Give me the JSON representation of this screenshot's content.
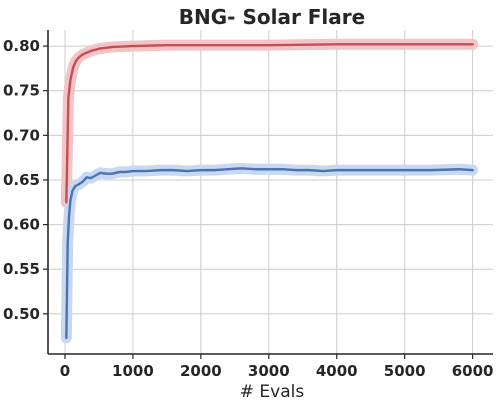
{
  "chart_data": {
    "type": "line",
    "title": "BNG- Solar Flare",
    "xlabel": "# Evals",
    "ylabel": "",
    "xlim": [
      -250,
      6300
    ],
    "ylim": [
      0.455,
      0.818
    ],
    "xticks": [
      0,
      1000,
      2000,
      3000,
      4000,
      5000,
      6000
    ],
    "xtick_labels": [
      "0",
      "1000",
      "2000",
      "3000",
      "4000",
      "5000",
      "6000"
    ],
    "yticks": [
      0.5,
      0.55,
      0.6,
      0.65,
      0.7,
      0.75,
      0.8
    ],
    "ytick_labels": [
      "0.50",
      "0.55",
      "0.60",
      "0.65",
      "0.70",
      "0.75",
      "0.80"
    ],
    "grid": true,
    "series": [
      {
        "color": "#c44e52",
        "band_color": "#f2c4c6",
        "x": [
          20,
          50,
          80,
          120,
          160,
          200,
          250,
          300,
          400,
          500,
          700,
          1000,
          1500,
          2000,
          3000,
          4000,
          5000,
          6000
        ],
        "y": [
          0.625,
          0.742,
          0.762,
          0.776,
          0.783,
          0.787,
          0.79,
          0.792,
          0.795,
          0.797,
          0.799,
          0.8,
          0.801,
          0.801,
          0.801,
          0.802,
          0.802,
          0.802
        ],
        "band_half_width": [
          0.008,
          0.007,
          0.005,
          0.004,
          0.004,
          0.004,
          0.004,
          0.004,
          0.004,
          0.004,
          0.004,
          0.004,
          0.004,
          0.004,
          0.004,
          0.004,
          0.004,
          0.004
        ]
      },
      {
        "color": "#4c72b0",
        "band_color": "#c8d8f0",
        "x": [
          20,
          40,
          60,
          80,
          110,
          150,
          200,
          260,
          320,
          380,
          450,
          520,
          600,
          700,
          800,
          900,
          1000,
          1100,
          1200,
          1400,
          1600,
          1800,
          2000,
          2200,
          2400,
          2600,
          2800,
          3000,
          3200,
          3400,
          3600,
          3800,
          4000,
          4300,
          4600,
          5000,
          5400,
          5800,
          6000
        ],
        "y": [
          0.473,
          0.58,
          0.61,
          0.627,
          0.638,
          0.643,
          0.645,
          0.648,
          0.653,
          0.652,
          0.655,
          0.658,
          0.657,
          0.657,
          0.659,
          0.659,
          0.66,
          0.66,
          0.66,
          0.661,
          0.661,
          0.66,
          0.661,
          0.661,
          0.662,
          0.663,
          0.662,
          0.662,
          0.662,
          0.661,
          0.661,
          0.66,
          0.661,
          0.661,
          0.661,
          0.661,
          0.661,
          0.662,
          0.661
        ],
        "band_half_width": [
          0.006,
          0.007,
          0.006,
          0.005,
          0.004,
          0.004,
          0.004,
          0.004,
          0.004,
          0.004,
          0.004,
          0.004,
          0.004,
          0.004,
          0.004,
          0.004,
          0.004,
          0.004,
          0.004,
          0.004,
          0.004,
          0.004,
          0.004,
          0.004,
          0.004,
          0.004,
          0.004,
          0.004,
          0.004,
          0.004,
          0.004,
          0.004,
          0.004,
          0.004,
          0.004,
          0.004,
          0.004,
          0.004,
          0.004
        ]
      }
    ]
  }
}
